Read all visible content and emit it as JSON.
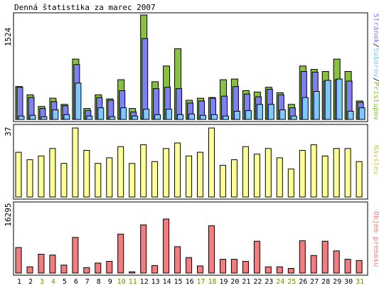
{
  "chart_data": {
    "title": "Denná štatistika za marec 2007",
    "type": "bar",
    "categories": [
      "1",
      "2",
      "3",
      "4",
      "5",
      "6",
      "7",
      "8",
      "9",
      "10",
      "11",
      "12",
      "13",
      "14",
      "15",
      "16",
      "17",
      "18",
      "19",
      "20",
      "21",
      "22",
      "23",
      "24",
      "25",
      "26",
      "27",
      "28",
      "29",
      "30",
      "31"
    ],
    "weekend_days": [
      "3",
      "4",
      "10",
      "11",
      "17",
      "18",
      "24",
      "25",
      "31"
    ],
    "colors": {
      "pristupov": "#88c040",
      "stranok": "#8080ee",
      "suborov": "#80c8f8",
      "navstev": "#ffff99",
      "objem": "#f07e80",
      "weekend_label": "#669900",
      "weekday_label": "#000000"
    },
    "panels": [
      {
        "ymax_label": "1524",
        "ymax": 1524,
        "legend": {
          "stranok": "Stránok",
          "separator": "/",
          "suborov": "Súborov",
          "pristupov": "Prístupov"
        },
        "series": [
          {
            "name": "Prístupov",
            "key": "pristupov",
            "values": [
              480,
              360,
              190,
              310,
              220,
              880,
              160,
              360,
              300,
              580,
              160,
              1524,
              550,
              780,
              1030,
              280,
              310,
              320,
              580,
              590,
              420,
              400,
              470,
              390,
              220,
              780,
              730,
              700,
              880,
              700,
              270
            ]
          },
          {
            "name": "Stránok",
            "key": "stranok",
            "values": [
              470,
              320,
              160,
              260,
              200,
              800,
              130,
              320,
              280,
              420,
              110,
              1180,
              450,
              470,
              450,
              240,
              270,
              310,
              340,
              480,
              370,
              330,
              440,
              360,
              170,
              700,
              690,
              560,
              580,
              560,
              250
            ]
          },
          {
            "name": "Súborov",
            "key": "suborov",
            "values": [
              50,
              60,
              40,
              140,
              70,
              530,
              50,
              170,
              40,
              170,
              50,
              150,
              70,
              150,
              70,
              80,
              60,
              70,
              50,
              120,
              130,
              220,
              220,
              140,
              50,
              320,
              410,
              570,
              590,
              120,
              170
            ]
          }
        ]
      },
      {
        "ymax_label": "37",
        "ymax": 37,
        "legend": {
          "label": "Návštev"
        },
        "series": [
          {
            "name": "Návštev",
            "key": "navstev",
            "values": [
              24,
              20,
              22,
              26,
              18,
              37,
              25,
              18,
              21,
              27,
              18,
              28,
              19,
              26,
              29,
              22,
              24,
              37,
              17,
              20,
              27,
              23,
              26,
              21,
              15,
              25,
              28,
              22,
              26,
              26,
              19
            ]
          }
        ]
      },
      {
        "ymax_label": "16295",
        "ymax": 16295,
        "legend": {
          "label": "Objem prenosu"
        },
        "series": [
          {
            "name": "Objem prenosu",
            "key": "objem",
            "values": [
              6100,
              1500,
              4500,
              4300,
              1900,
              8500,
              1300,
              2400,
              2800,
              9300,
              300,
              11500,
              1800,
              12900,
              6300,
              3700,
              1700,
              11300,
              3300,
              3300,
              2800,
              7600,
              1500,
              1500,
              1100,
              7700,
              4200,
              7600,
              5300,
              3300,
              3000
            ]
          }
        ]
      }
    ]
  }
}
